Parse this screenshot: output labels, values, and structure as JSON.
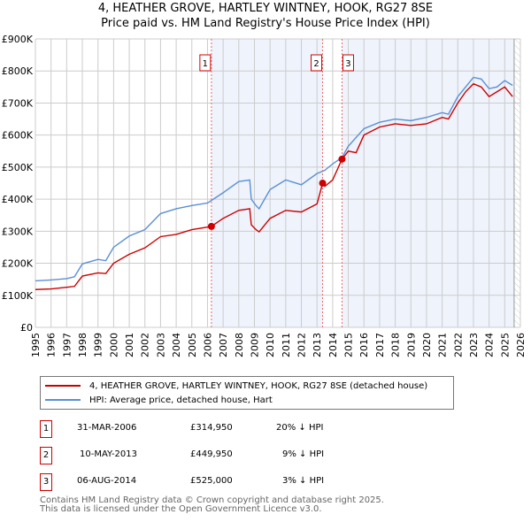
{
  "chart_data": {
    "type": "line",
    "title": "4, HEATHER GROVE, HARTLEY WINTNEY, HOOK, RG27 8SE",
    "subtitle": "Price paid vs. HM Land Registry's House Price Index (HPI)",
    "xlim": [
      1995,
      2026
    ],
    "ylim": [
      0,
      900000
    ],
    "x_ticks": [
      "1995",
      "1996",
      "1997",
      "1998",
      "1999",
      "2000",
      "2001",
      "2002",
      "2003",
      "2004",
      "2005",
      "2006",
      "2007",
      "2008",
      "2009",
      "2010",
      "2011",
      "2012",
      "2013",
      "2014",
      "2015",
      "2016",
      "2017",
      "2018",
      "2019",
      "2020",
      "2021",
      "2022",
      "2023",
      "2024",
      "2025",
      "2026"
    ],
    "y_ticks": [
      {
        "v": 0,
        "label": "£0"
      },
      {
        "v": 100000,
        "label": "£100K"
      },
      {
        "v": 200000,
        "label": "£200K"
      },
      {
        "v": 300000,
        "label": "£300K"
      },
      {
        "v": 400000,
        "label": "£400K"
      },
      {
        "v": 500000,
        "label": "£500K"
      },
      {
        "v": 600000,
        "label": "£600K"
      },
      {
        "v": 700000,
        "label": "£700K"
      },
      {
        "v": 800000,
        "label": "£800K"
      },
      {
        "v": 900000,
        "label": "£900K"
      }
    ],
    "series": [
      {
        "name": "4, HEATHER GROVE, HARTLEY WINTNEY, HOOK, RG27 8SE (detached house)",
        "color": "#cc0000",
        "x": [
          1995,
          1996,
          1997,
          1997.5,
          1998,
          1999,
          1999.5,
          2000,
          2001,
          2002,
          2003,
          2004,
          2005,
          2006.25,
          2007,
          2008,
          2008.7,
          2008.8,
          2009.1,
          2009.3,
          2010,
          2011,
          2012,
          2013,
          2013.36,
          2013.5,
          2014,
          2014.6,
          2015,
          2015.5,
          2016,
          2017,
          2018,
          2019,
          2020,
          2021,
          2021.4,
          2022,
          2022.5,
          2023,
          2023.5,
          2024,
          2024.5,
          2025,
          2025.5
        ],
        "y": [
          118000,
          120000,
          125000,
          128000,
          160000,
          170000,
          168000,
          200000,
          228000,
          248000,
          283000,
          290000,
          305000,
          314950,
          340000,
          365000,
          370000,
          320000,
          305000,
          298000,
          340000,
          365000,
          360000,
          385000,
          449950,
          440000,
          460000,
          525000,
          550000,
          545000,
          600000,
          625000,
          635000,
          630000,
          635000,
          655000,
          650000,
          700000,
          735000,
          760000,
          750000,
          720000,
          735000,
          750000,
          720000
        ]
      },
      {
        "name": "HPI: Average price, detached house, Hart",
        "color": "#5b8fd4",
        "x": [
          1995,
          1996,
          1997,
          1997.5,
          1998,
          1999,
          1999.5,
          2000,
          2001,
          2002,
          2003,
          2004,
          2005,
          2006,
          2007,
          2008,
          2008.7,
          2008.8,
          2009.1,
          2009.3,
          2010,
          2011,
          2012,
          2013,
          2013.5,
          2014,
          2014.6,
          2015,
          2016,
          2017,
          2018,
          2019,
          2020,
          2021,
          2021.4,
          2022,
          2022.5,
          2023,
          2023.5,
          2024,
          2024.5,
          2025,
          2025.5
        ],
        "y": [
          145000,
          148000,
          152000,
          158000,
          198000,
          212000,
          208000,
          250000,
          285000,
          305000,
          355000,
          370000,
          380000,
          388000,
          420000,
          455000,
          460000,
          400000,
          380000,
          370000,
          430000,
          460000,
          445000,
          480000,
          490000,
          510000,
          530000,
          565000,
          620000,
          640000,
          650000,
          645000,
          655000,
          670000,
          665000,
          720000,
          750000,
          780000,
          775000,
          745000,
          750000,
          770000,
          755000
        ]
      }
    ],
    "sales": [
      {
        "id": "1",
        "x": 2006.25,
        "price": 314950,
        "date": "31-MAR-2006",
        "price_label": "£314,950",
        "hpi": "20% ↓ HPI"
      },
      {
        "id": "2",
        "x": 2013.36,
        "price": 449950,
        "date": "10-MAY-2013",
        "price_label": "£449,950",
        "hpi": "9% ↓ HPI"
      },
      {
        "id": "3",
        "x": 2014.6,
        "price": 525000,
        "date": "06-AUG-2014",
        "price_label": "£525,000",
        "hpi": "3% ↓ HPI"
      }
    ],
    "data_end": 2025.6,
    "footer": [
      "Contains HM Land Registry data © Crown copyright and database right 2025.",
      "This data is licensed under the Open Government Licence v3.0."
    ]
  }
}
